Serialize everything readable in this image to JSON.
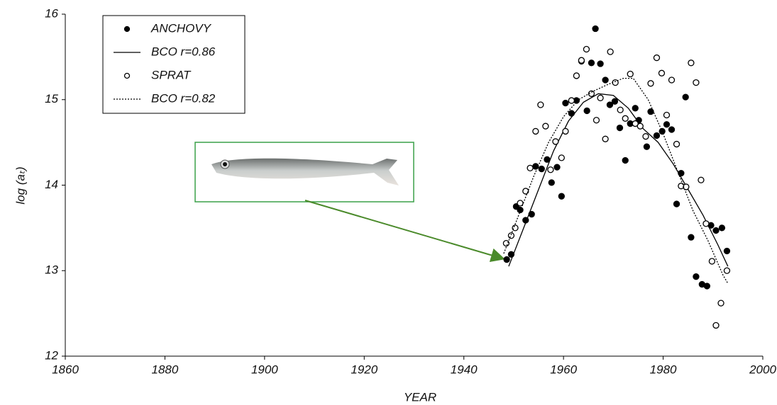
{
  "chart_data": {
    "type": "scatter",
    "x_label": "YEAR",
    "y_label": "log (aₜ)",
    "xlim": [
      1860,
      2000
    ],
    "ylim": [
      12,
      16
    ],
    "xticks": [
      1860,
      1880,
      1900,
      1920,
      1940,
      1960,
      1980,
      2000
    ],
    "yticks": [
      12,
      13,
      14,
      15,
      16
    ],
    "legend": "upper left",
    "series": [
      {
        "name": "ANCHOVY",
        "style": "marker-filled",
        "color": "#000000",
        "x": [
          1948.6,
          1949.5,
          1950.5,
          1951.3,
          1952.4,
          1953.6,
          1954.4,
          1955.6,
          1956.7,
          1957.6,
          1958.7,
          1959.6,
          1960.4,
          1961.6,
          1962.6,
          1963.6,
          1964.7,
          1965.6,
          1966.4,
          1967.4,
          1968.4,
          1969.3,
          1970.3,
          1971.3,
          1972.4,
          1973.4,
          1974.4,
          1975.1,
          1976.7,
          1977.5,
          1978.7,
          1979.8,
          1980.7,
          1981.7,
          1982.7,
          1983.6,
          1984.5,
          1985.6,
          1986.6,
          1987.8,
          1988.8,
          1989.6,
          1990.6,
          1991.8,
          1992.8
        ],
        "values": [
          13.13,
          13.19,
          13.75,
          13.71,
          13.59,
          13.66,
          14.22,
          14.19,
          14.3,
          14.03,
          14.21,
          13.87,
          14.96,
          14.84,
          14.99,
          15.45,
          14.87,
          15.43,
          15.83,
          15.42,
          15.23,
          14.94,
          14.98,
          14.67,
          14.29,
          14.72,
          14.9,
          14.76,
          14.45,
          14.86,
          14.58,
          14.63,
          14.71,
          14.65,
          13.78,
          14.14,
          15.03,
          13.39,
          12.93,
          12.84,
          12.82,
          13.53,
          13.47,
          13.5,
          13.23
        ]
      },
      {
        "name": "BCO r=0.86",
        "style": "line-solid",
        "color": "#000000",
        "x": [
          1949,
          1952,
          1955,
          1958,
          1961,
          1964,
          1967,
          1970,
          1973,
          1976,
          1979,
          1982,
          1985,
          1988,
          1991,
          1993
        ],
        "values": [
          13.05,
          13.5,
          13.95,
          14.4,
          14.75,
          14.97,
          15.07,
          15.05,
          14.9,
          14.66,
          14.5,
          14.25,
          13.95,
          13.65,
          13.3,
          13.05
        ]
      },
      {
        "name": "SPRAT",
        "style": "marker-open",
        "color": "#000000",
        "x": [
          1948.5,
          1949.5,
          1950.3,
          1951.3,
          1952.4,
          1953.3,
          1954.4,
          1955.4,
          1956.4,
          1957.4,
          1958.4,
          1959.6,
          1960.4,
          1961.6,
          1962.6,
          1963.6,
          1964.6,
          1965.6,
          1966.6,
          1967.4,
          1968.4,
          1969.4,
          1970.4,
          1971.4,
          1972.4,
          1973.4,
          1974.4,
          1975.4,
          1976.5,
          1977.5,
          1978.7,
          1979.7,
          1980.7,
          1981.7,
          1982.7,
          1983.6,
          1984.6,
          1985.6,
          1986.6,
          1987.6,
          1988.6,
          1989.8,
          1990.6,
          1991.6,
          1992.8
        ],
        "values": [
          13.32,
          13.41,
          13.5,
          13.79,
          13.93,
          14.2,
          14.63,
          14.94,
          14.69,
          14.18,
          14.51,
          14.32,
          14.63,
          14.99,
          15.28,
          15.46,
          15.59,
          15.07,
          14.76,
          15.02,
          14.54,
          15.56,
          15.2,
          14.88,
          14.78,
          15.3,
          14.72,
          14.69,
          14.57,
          15.19,
          15.49,
          15.31,
          14.82,
          15.23,
          14.48,
          13.99,
          13.98,
          15.43,
          15.2,
          14.06,
          13.55,
          13.11,
          12.36,
          12.62,
          13.0
        ]
      },
      {
        "name": "BCO r=0.82",
        "style": "line-dotted",
        "color": "#000000",
        "x": [
          1948,
          1951,
          1954,
          1957,
          1960,
          1963,
          1966,
          1969,
          1972,
          1974,
          1977,
          1980,
          1983,
          1986,
          1989,
          1992,
          1993
        ],
        "values": [
          13.2,
          13.65,
          14.1,
          14.5,
          14.8,
          15.0,
          15.1,
          15.18,
          15.25,
          15.25,
          15.0,
          14.6,
          14.15,
          13.7,
          13.35,
          12.95,
          12.85
        ]
      }
    ]
  }
}
